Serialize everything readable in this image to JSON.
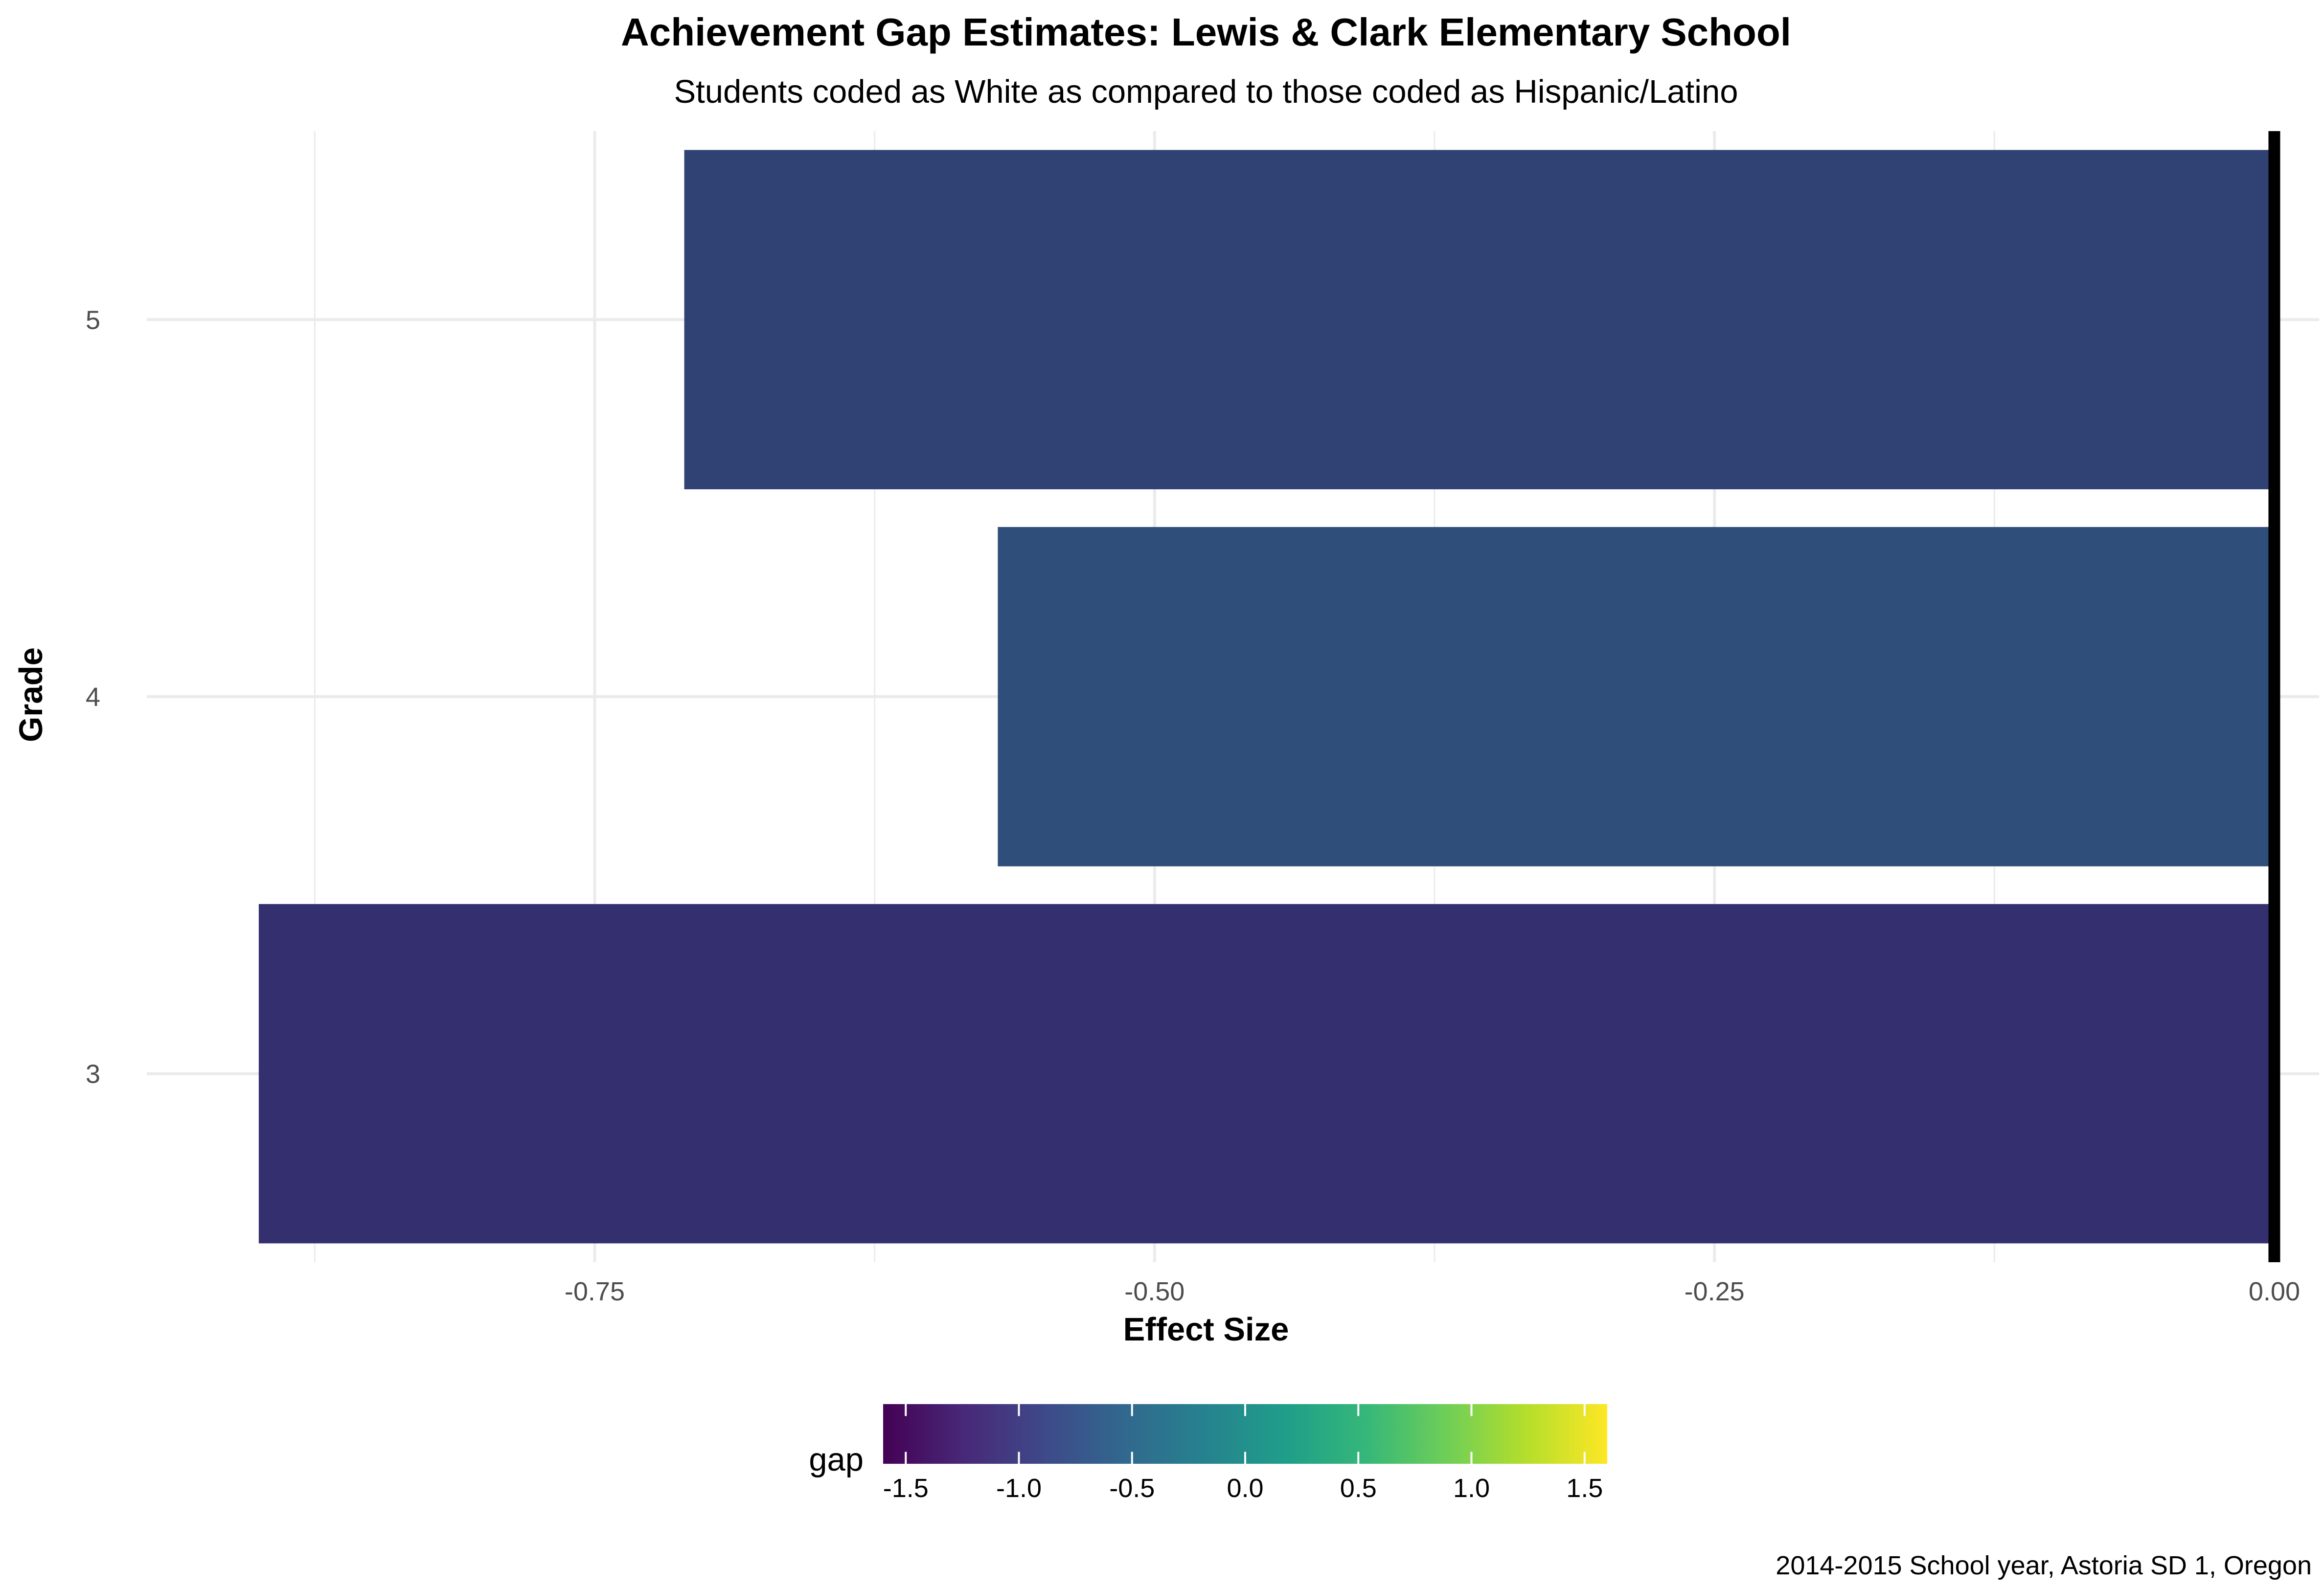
{
  "chart_data": {
    "type": "bar",
    "orientation": "horizontal",
    "title": "Achievement Gap Estimates: Lewis & Clark Elementary School",
    "subtitle": "Students coded as White as compared to those coded as Hispanic/Latino",
    "xlabel": "Effect Size",
    "ylabel": "Grade",
    "categories": [
      "3",
      "4",
      "5"
    ],
    "values": [
      -0.9,
      -0.57,
      -0.71
    ],
    "bar_colors": [
      "#34306f",
      "#2f4e79",
      "#304174"
    ],
    "xlim": [
      -0.95,
      0.02
    ],
    "x_ticks": [
      -0.75,
      -0.5,
      -0.25,
      0.0
    ],
    "x_tick_labels": [
      "-0.75",
      "-0.50",
      "-0.25",
      "0.00"
    ],
    "reference_line": 0.0,
    "grid": true,
    "legend": {
      "title": "gap",
      "type": "colorbar",
      "placement": "bottom",
      "range": [
        -1.6,
        1.6
      ],
      "ticks": [
        -1.5,
        -1.0,
        -0.5,
        0.0,
        0.5,
        1.0,
        1.5
      ],
      "tick_labels": [
        "-1.5",
        "-1.0",
        "-0.5",
        "0.0",
        "0.5",
        "1.0",
        "1.5"
      ],
      "palette": [
        "#440154",
        "#482878",
        "#3e4989",
        "#31688e",
        "#26828e",
        "#1f9e89",
        "#35b779",
        "#6ece58",
        "#b5de2b",
        "#fde725"
      ]
    },
    "caption": "2014-2015 School year, Astoria SD 1, Oregon"
  }
}
